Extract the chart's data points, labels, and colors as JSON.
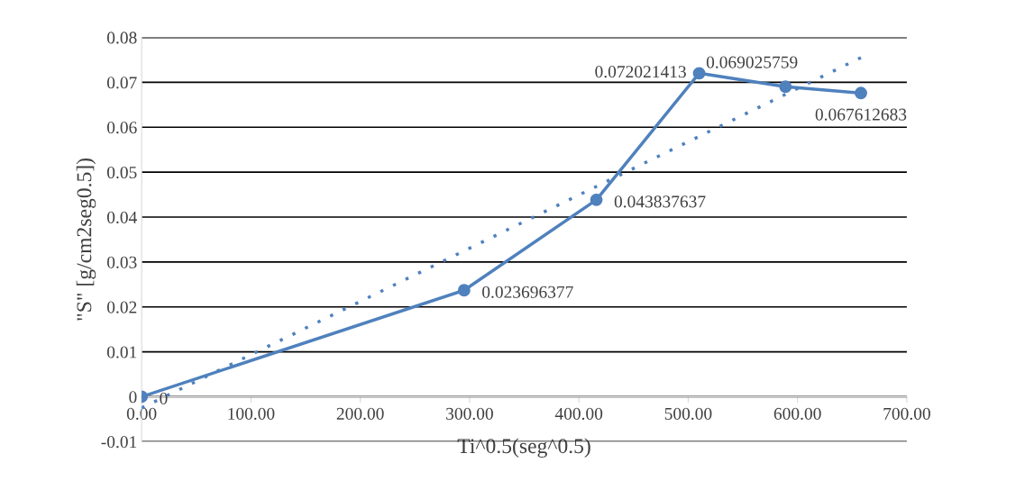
{
  "chart_data": {
    "type": "line",
    "xlabel": "Ti^0.5(seg^0.5)",
    "ylabel": "\"S\" [g/cm2seg0.5])",
    "xlim": [
      0,
      700
    ],
    "ylim": [
      -0.01,
      0.08
    ],
    "xticks": [
      {
        "value": 0,
        "label": "0.00"
      },
      {
        "value": 100,
        "label": "100.00"
      },
      {
        "value": 200,
        "label": "200.00"
      },
      {
        "value": 300,
        "label": "300.00"
      },
      {
        "value": 400,
        "label": "400.00"
      },
      {
        "value": 500,
        "label": "500.00"
      },
      {
        "value": 600,
        "label": "600.00"
      },
      {
        "value": 700,
        "label": "700.00"
      }
    ],
    "yticks": [
      -0.01,
      0,
      0.01,
      0.02,
      0.03,
      0.04,
      0.05,
      0.06,
      0.07,
      0.08
    ],
    "grid": "y",
    "legend": false,
    "series": [
      {
        "color": "#4f81bd",
        "marker": "circle",
        "line_style": "solid",
        "x": [
          0,
          295,
          416,
          510,
          589,
          658
        ],
        "values": [
          0,
          0.023696377,
          0.043837637,
          0.072021413,
          0.069025759,
          0.067612683
        ],
        "value_labels": [
          "0",
          "0.023696377",
          "0.043837637",
          "0.072021413",
          "0.069025759",
          "0.067612683"
        ]
      },
      {
        "type": "line",
        "color": "#4f81bd",
        "marker": "none",
        "line_style": "dotted",
        "x": [
          0,
          658
        ],
        "values": [
          -0.0025,
          0.0755
        ]
      }
    ]
  }
}
